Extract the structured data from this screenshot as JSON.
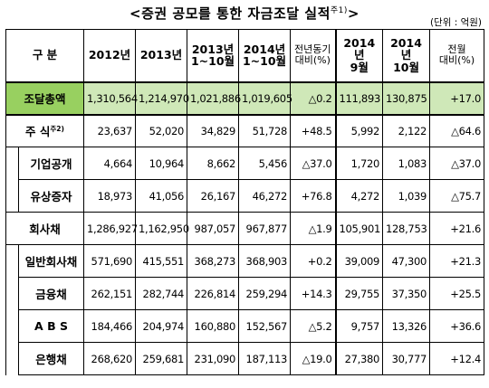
{
  "title": "<증권 공모를 통한 자금조달 실적",
  "title_note": "주1)",
  "title_close": ">",
  "unit": "(단위 : 억원)",
  "headers": {
    "category": "구   분",
    "y2012": "2012년",
    "y2013": "2013년",
    "y2013_ytd_1": "2013년",
    "y2013_ytd_2": "1~10월",
    "y2014_ytd_1": "2014년",
    "y2014_ytd_2": "1~10월",
    "yoy_1": "전년동기",
    "yoy_2": "대비(%)",
    "sep2014_1": "2014년",
    "sep2014_2": "9월",
    "oct2014_1": "2014년",
    "oct2014_2": "10월",
    "mom_1": "전월",
    "mom_2": "대비(%)"
  },
  "rows": [
    {
      "label": "조달총액",
      "note": "",
      "cells": [
        "1,310,564",
        "1,214,970",
        "1,021,886",
        "1,019,605",
        "△0.2",
        "111,893",
        "130,875",
        "+17.0"
      ]
    },
    {
      "label": "주   식",
      "note": "주2)",
      "cells": [
        "23,637",
        "52,020",
        "34,829",
        "51,728",
        "+48.5",
        "5,992",
        "2,122",
        "△64.6"
      ]
    },
    {
      "label": "기업공개",
      "note": "",
      "cells": [
        "4,664",
        "10,964",
        "8,662",
        "5,456",
        "△37.0",
        "1,720",
        "1,083",
        "△37.0"
      ]
    },
    {
      "label": "유상증자",
      "note": "",
      "cells": [
        "18,973",
        "41,056",
        "26,167",
        "46,272",
        "+76.8",
        "4,272",
        "1,039",
        "△75.7"
      ]
    },
    {
      "label": "회사채",
      "note": "",
      "cells": [
        "1,286,927",
        "1,162,950",
        "987,057",
        "967,877",
        "△1.9",
        "105,901",
        "128,753",
        "+21.6"
      ]
    },
    {
      "label": "일반회사채",
      "note": "",
      "cells": [
        "571,690",
        "415,551",
        "368,273",
        "368,903",
        "+0.2",
        "39,009",
        "47,300",
        "+21.3"
      ]
    },
    {
      "label": "금융채",
      "note": "",
      "cells": [
        "262,151",
        "282,744",
        "226,814",
        "259,294",
        "+14.3",
        "29,755",
        "37,350",
        "+25.5"
      ]
    },
    {
      "label": "A B S",
      "note": "",
      "cells": [
        "184,466",
        "204,974",
        "160,880",
        "152,567",
        "△5.2",
        "9,757",
        "13,326",
        "+36.6"
      ]
    },
    {
      "label": "은행채",
      "note": "",
      "cells": [
        "268,620",
        "259,681",
        "231,090",
        "187,113",
        "△19.0",
        "27,380",
        "30,777",
        "+12.4"
      ]
    }
  ]
}
